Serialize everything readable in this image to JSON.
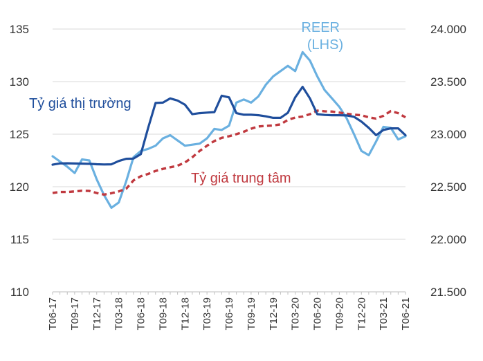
{
  "chart_data": {
    "type": "line",
    "x": [
      "T06-17",
      "T07-17",
      "T08-17",
      "T09-17",
      "T10-17",
      "T11-17",
      "T12-17",
      "T01-18",
      "T02-18",
      "T03-18",
      "T04-18",
      "T05-18",
      "T06-18",
      "T07-18",
      "T08-18",
      "T09-18",
      "T10-18",
      "T11-18",
      "T12-18",
      "T01-19",
      "T02-19",
      "T03-19",
      "T04-19",
      "T05-19",
      "T06-19",
      "T07-19",
      "T08-19",
      "T09-19",
      "T10-19",
      "T11-19",
      "T12-19",
      "T01-20",
      "T02-20",
      "T03-20",
      "T04-20",
      "T05-20",
      "T06-20",
      "T07-20",
      "T08-20",
      "T09-20",
      "T10-20",
      "T11-20",
      "T12-20",
      "T01-21",
      "T02-21",
      "T03-21",
      "T04-21",
      "T05-21",
      "T06-21"
    ],
    "x_tick_labels": [
      "T06-17",
      "T09-17",
      "T12-17",
      "T03-18",
      "T06-18",
      "T09-18",
      "T12-18",
      "T03-19",
      "T06-19",
      "T09-19",
      "T12-19",
      "T03-20",
      "T06-20",
      "T09-20",
      "T12-20",
      "T03-21",
      "T06-21"
    ],
    "left_axis": {
      "ylim": [
        110,
        135
      ],
      "ticks": [
        "110",
        "115",
        "120",
        "125",
        "130",
        "135"
      ]
    },
    "right_axis": {
      "ylim": [
        21500,
        24000
      ],
      "ticks": [
        "21.500",
        "22.000",
        "22.500",
        "23.000",
        "23.500",
        "24.000"
      ]
    },
    "grid": true,
    "series": [
      {
        "name": "Tỷ giá thị trường",
        "axis": "right",
        "color": "#1f4e9c",
        "style": "solid",
        "values": [
          22710,
          22722,
          22723,
          22721,
          22720,
          22718,
          22714,
          22712,
          22713,
          22745,
          22766,
          22768,
          22810,
          23060,
          23297,
          23300,
          23340,
          23320,
          23280,
          23190,
          23200,
          23205,
          23210,
          23366,
          23350,
          23200,
          23185,
          23185,
          23180,
          23170,
          23155,
          23155,
          23203,
          23350,
          23450,
          23340,
          23190,
          23183,
          23180,
          23180,
          23178,
          23165,
          23120,
          23060,
          22990,
          23040,
          23055,
          23055,
          22990
        ]
      },
      {
        "name": "REER (LHS)",
        "axis": "left",
        "color": "#6ab0e0",
        "style": "solid",
        "values": [
          122.9,
          122.4,
          121.9,
          121.3,
          122.6,
          122.5,
          120.7,
          119.2,
          118.0,
          118.5,
          120.5,
          122.8,
          123.4,
          123.6,
          123.9,
          124.6,
          124.9,
          124.4,
          123.9,
          124.0,
          124.1,
          124.6,
          125.5,
          125.4,
          125.8,
          128.0,
          128.3,
          128.0,
          128.6,
          129.7,
          130.5,
          131.0,
          131.5,
          131.0,
          132.8,
          132.0,
          130.5,
          129.2,
          128.4,
          127.6,
          126.5,
          125.0,
          123.4,
          123.0,
          124.3,
          125.7,
          125.6,
          124.5,
          124.8
        ]
      },
      {
        "name": "Tỷ giá trung tâm",
        "axis": "right",
        "color": "#c0393f",
        "style": "dashed",
        "values": [
          22440,
          22450,
          22450,
          22455,
          22462,
          22460,
          22440,
          22425,
          22438,
          22455,
          22480,
          22560,
          22600,
          22622,
          22650,
          22670,
          22685,
          22700,
          22730,
          22780,
          22840,
          22890,
          22935,
          22965,
          22980,
          23000,
          23023,
          23052,
          23074,
          23078,
          23083,
          23093,
          23136,
          23158,
          23168,
          23190,
          23224,
          23218,
          23215,
          23205,
          23195,
          23185,
          23180,
          23160,
          23148,
          23175,
          23220,
          23200,
          23160
        ]
      }
    ]
  }
}
